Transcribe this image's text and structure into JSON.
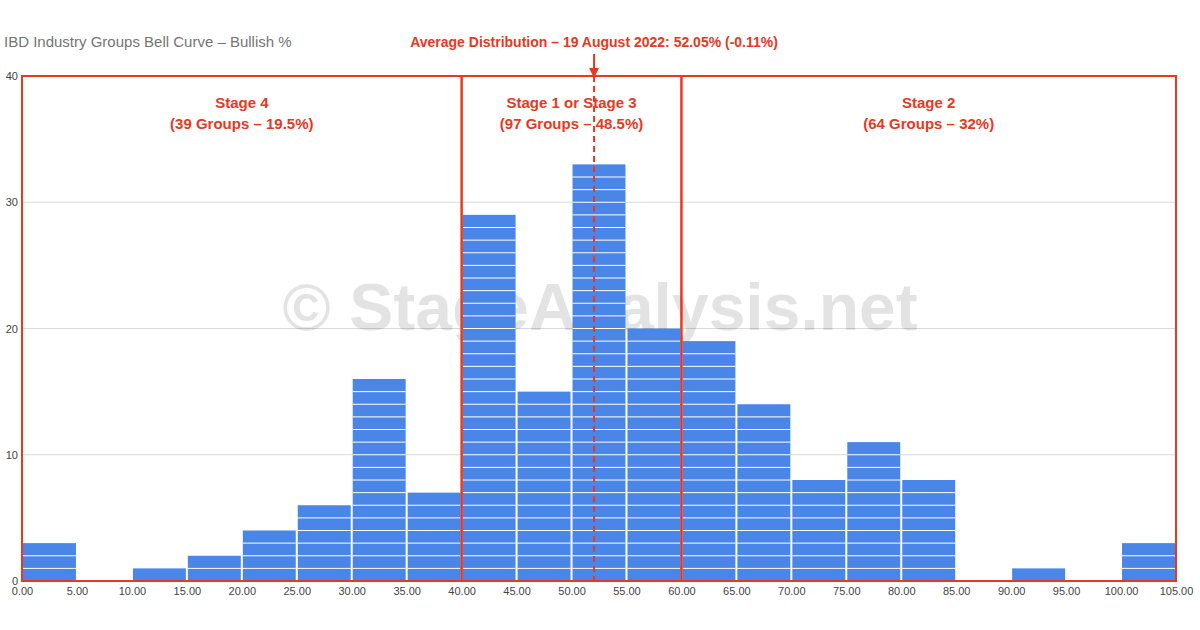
{
  "chart_data": {
    "type": "histogram",
    "title": "IBD Industry Groups Bell Curve – Bullish %",
    "bins": [
      0,
      5,
      10,
      15,
      20,
      25,
      30,
      35,
      40,
      45,
      50,
      55,
      60,
      65,
      70,
      75,
      80,
      85,
      90,
      95,
      100,
      105
    ],
    "values": [
      3,
      0,
      1,
      2,
      4,
      6,
      16,
      7,
      29,
      15,
      33,
      20,
      19,
      14,
      8,
      11,
      8,
      0,
      1,
      0,
      3
    ],
    "color": "#4a86e8",
    "xlim": [
      0,
      105
    ],
    "xticks": [
      {
        "value": 0,
        "label": "0.00"
      },
      {
        "value": 5,
        "label": "5.00"
      },
      {
        "value": 10,
        "label": "10.00"
      },
      {
        "value": 15,
        "label": "15.00"
      },
      {
        "value": 20,
        "label": "20.00"
      },
      {
        "value": 25,
        "label": "25.00"
      },
      {
        "value": 30,
        "label": "30.00"
      },
      {
        "value": 35,
        "label": "35.00"
      },
      {
        "value": 40,
        "label": "40.00"
      },
      {
        "value": 45,
        "label": "45.00"
      },
      {
        "value": 50,
        "label": "50.00"
      },
      {
        "value": 55,
        "label": "55.00"
      },
      {
        "value": 60,
        "label": "60.00"
      },
      {
        "value": 65,
        "label": "65.00"
      },
      {
        "value": 70,
        "label": "70.00"
      },
      {
        "value": 75,
        "label": "75.00"
      },
      {
        "value": 80,
        "label": "80.00"
      },
      {
        "value": 85,
        "label": "85.00"
      },
      {
        "value": 90,
        "label": "90.00"
      },
      {
        "value": 95,
        "label": "95.00"
      },
      {
        "value": 100,
        "label": "100.00"
      },
      {
        "value": 105,
        "label": "105.00"
      }
    ],
    "ylim": [
      0,
      40
    ],
    "yticks": [
      0,
      10,
      20,
      30,
      40
    ],
    "grid": true,
    "annotations": [
      {
        "text": "Average Distribution – 19 August 2022: 52.05% (-0.11%)",
        "x": 52.05
      }
    ],
    "zones": [
      {
        "label": "Stage 4",
        "detail": "(39 Groups – 19.5%)",
        "x0": 0,
        "x1": 40
      },
      {
        "label": "Stage 1 or Stage 3",
        "detail": "(97 Groups – 48.5%)",
        "x0": 40,
        "x1": 60
      },
      {
        "label": "Stage 2",
        "detail": "(64 Groups – 32%)",
        "x0": 60,
        "x1": 105
      }
    ],
    "watermark": "© StageAnalysis.net"
  }
}
